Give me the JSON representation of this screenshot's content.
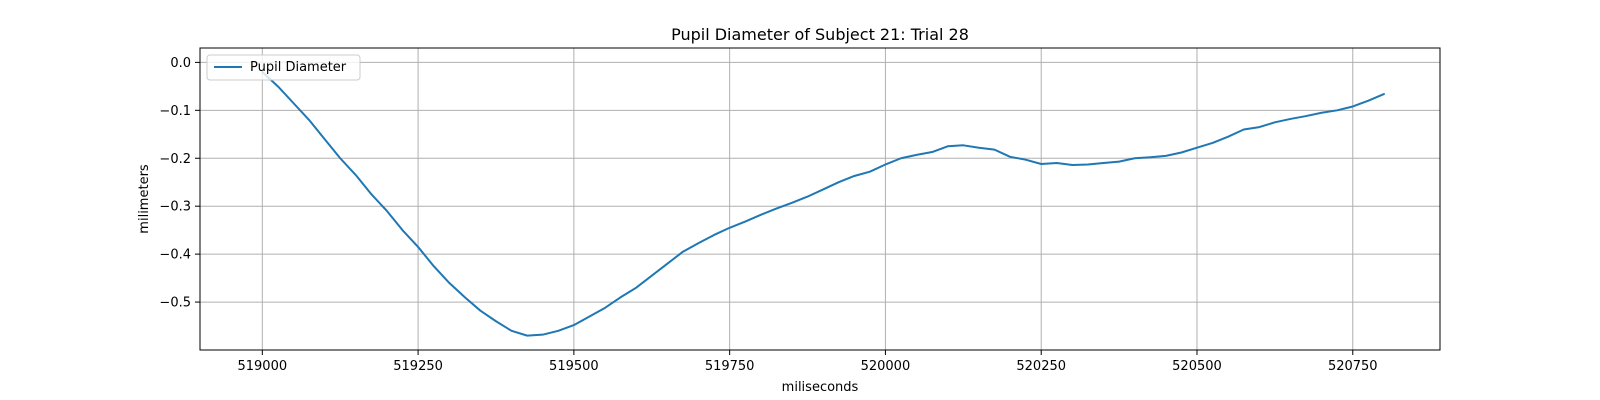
{
  "chart_data": {
    "type": "line",
    "title": "Pupil Diameter of Subject 21: Trial 28",
    "xlabel": "miliseconds",
    "ylabel": "milimeters",
    "xlim": [
      518900,
      520890
    ],
    "ylim": [
      -0.6,
      0.03
    ],
    "x_ticks": [
      519000,
      519250,
      519500,
      519750,
      520000,
      520250,
      520500,
      520750
    ],
    "x_tick_labels": [
      "519000",
      "519250",
      "519500",
      "519750",
      "520000",
      "520250",
      "520500",
      "520750"
    ],
    "y_ticks": [
      0.0,
      -0.1,
      -0.2,
      -0.3,
      -0.4,
      -0.5
    ],
    "y_tick_labels": [
      "0.0",
      "−0.1",
      "−0.2",
      "−0.3",
      "−0.4",
      "−0.5"
    ],
    "grid": true,
    "legend_position": "upper-left",
    "series": [
      {
        "name": "Pupil Diameter",
        "color": "#1f77b4",
        "x": [
          519000,
          519025,
          519050,
          519075,
          519100,
          519125,
          519150,
          519175,
          519200,
          519225,
          519250,
          519275,
          519300,
          519325,
          519350,
          519375,
          519400,
          519425,
          519450,
          519475,
          519500,
          519525,
          519550,
          519575,
          519600,
          519625,
          519650,
          519675,
          519700,
          519725,
          519750,
          519775,
          519800,
          519825,
          519850,
          519875,
          519900,
          519925,
          519950,
          519975,
          520000,
          520025,
          520050,
          520075,
          520100,
          520125,
          520150,
          520175,
          520200,
          520225,
          520250,
          520275,
          520300,
          520325,
          520350,
          520375,
          520400,
          520425,
          520450,
          520475,
          520500,
          520525,
          520550,
          520575,
          520600,
          520625,
          520650,
          520675,
          520700,
          520725,
          520750,
          520775,
          520800
        ],
        "y": [
          -0.02,
          -0.05,
          -0.085,
          -0.12,
          -0.16,
          -0.2,
          -0.235,
          -0.275,
          -0.31,
          -0.35,
          -0.385,
          -0.425,
          -0.46,
          -0.49,
          -0.518,
          -0.54,
          -0.56,
          -0.57,
          -0.568,
          -0.56,
          -0.548,
          -0.53,
          -0.512,
          -0.49,
          -0.47,
          -0.445,
          -0.42,
          -0.395,
          -0.377,
          -0.36,
          -0.345,
          -0.332,
          -0.318,
          -0.305,
          -0.293,
          -0.28,
          -0.265,
          -0.25,
          -0.237,
          -0.228,
          -0.213,
          -0.2,
          -0.193,
          -0.187,
          -0.175,
          -0.173,
          -0.178,
          -0.182,
          -0.197,
          -0.203,
          -0.212,
          -0.21,
          -0.214,
          -0.213,
          -0.21,
          -0.207,
          -0.2,
          -0.198,
          -0.195,
          -0.188,
          -0.178,
          -0.168,
          -0.155,
          -0.14,
          -0.135,
          -0.125,
          -0.118,
          -0.112,
          -0.105,
          -0.1,
          -0.092,
          -0.08,
          -0.066
        ]
      }
    ]
  }
}
